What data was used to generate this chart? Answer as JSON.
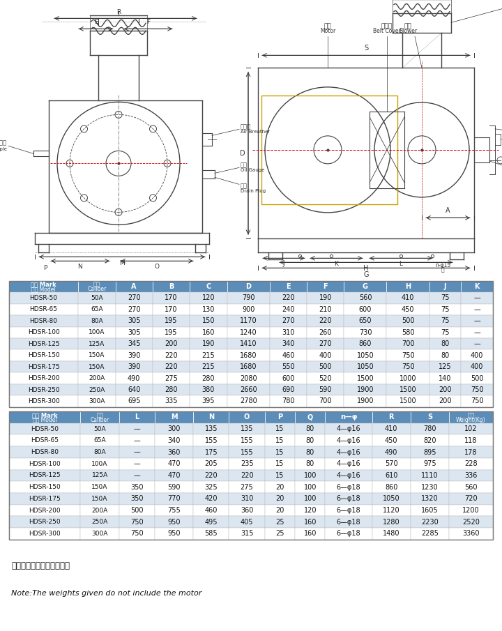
{
  "table1_header": [
    "记号 Mark\n型式 Model",
    "口径\nCaliber",
    "A",
    "B",
    "C",
    "D",
    "E",
    "F",
    "G",
    "H",
    "J",
    "K"
  ],
  "table1_data": [
    [
      "HDSR-50",
      "50A",
      "270",
      "170",
      "120",
      "790",
      "220",
      "190",
      "560",
      "410",
      "75",
      "—"
    ],
    [
      "HDSR-65",
      "65A",
      "270",
      "170",
      "130",
      "900",
      "240",
      "210",
      "600",
      "450",
      "75",
      "—"
    ],
    [
      "HDSR-80",
      "80A",
      "305",
      "195",
      "150",
      "1170",
      "270",
      "220",
      "650",
      "500",
      "75",
      "—"
    ],
    [
      "HDSR-100",
      "100A",
      "305",
      "195",
      "160",
      "1240",
      "310",
      "260",
      "730",
      "580",
      "75",
      "—"
    ],
    [
      "HDSR-125",
      "125A",
      "345",
      "200",
      "190",
      "1410",
      "340",
      "270",
      "860",
      "700",
      "80",
      "—"
    ],
    [
      "HDSR-150",
      "150A",
      "390",
      "220",
      "215",
      "1680",
      "460",
      "400",
      "1050",
      "750",
      "80",
      "400"
    ],
    [
      "HDSR-175",
      "150A",
      "390",
      "220",
      "215",
      "1680",
      "550",
      "500",
      "1050",
      "750",
      "125",
      "400"
    ],
    [
      "HDSR-200",
      "200A",
      "490",
      "275",
      "280",
      "2080",
      "600",
      "520",
      "1500",
      "1000",
      "140",
      "500"
    ],
    [
      "HDSR-250",
      "250A",
      "640",
      "280",
      "380",
      "2660",
      "690",
      "590",
      "1900",
      "1500",
      "200",
      "750"
    ],
    [
      "HDSR-300",
      "300A",
      "695",
      "335",
      "395",
      "2780",
      "780",
      "700",
      "1900",
      "1500",
      "200",
      "750"
    ]
  ],
  "table2_header": [
    "记号 Mark\n型式 Model",
    "口径\nCaliber",
    "L",
    "M",
    "N",
    "O",
    "P",
    "Q",
    "n—φ",
    "R",
    "S",
    "重量\nWeight(Kg)"
  ],
  "table2_data": [
    [
      "HDSR-50",
      "50A",
      "—",
      "300",
      "135",
      "135",
      "15",
      "80",
      "4—φ16",
      "410",
      "780",
      "102"
    ],
    [
      "HDSR-65",
      "65A",
      "—",
      "340",
      "155",
      "155",
      "15",
      "80",
      "4—φ16",
      "450",
      "820",
      "118"
    ],
    [
      "HDSR-80",
      "80A",
      "—",
      "360",
      "175",
      "155",
      "15",
      "80",
      "4—φ16",
      "490",
      "895",
      "178"
    ],
    [
      "HDSR-100",
      "100A",
      "—",
      "470",
      "205",
      "235",
      "15",
      "80",
      "4—φ16",
      "570",
      "975",
      "228"
    ],
    [
      "HDSR-125",
      "125A",
      "—",
      "470",
      "220",
      "220",
      "15",
      "100",
      "4—φ16",
      "610",
      "1110",
      "336"
    ],
    [
      "HDSR-150",
      "150A",
      "350",
      "590",
      "325",
      "275",
      "20",
      "100",
      "6—φ18",
      "860",
      "1230",
      "560"
    ],
    [
      "HDSR-175",
      "150A",
      "350",
      "770",
      "420",
      "310",
      "20",
      "100",
      "6—φ18",
      "1050",
      "1320",
      "720"
    ],
    [
      "HDSR-200",
      "200A",
      "500",
      "755",
      "460",
      "360",
      "20",
      "120",
      "6—φ18",
      "1120",
      "1605",
      "1200"
    ],
    [
      "HDSR-250",
      "250A",
      "750",
      "950",
      "495",
      "405",
      "25",
      "160",
      "6—φ18",
      "1280",
      "2230",
      "2520"
    ],
    [
      "HDSR-300",
      "300A",
      "750",
      "950",
      "585",
      "315",
      "25",
      "160",
      "6—φ18",
      "1480",
      "2285",
      "3360"
    ]
  ],
  "note_cn": "注：重量中不包括电机重量",
  "note_en": "Note:The weights given do not include the motor",
  "header_bg": "#5b8db8",
  "alt_row_bg": "#dce6f0",
  "white_row_bg": "#ffffff",
  "header_text_color": "#ffffff",
  "text_color": "#111111",
  "draw_line_color": "#444444",
  "dim_line_color": "#333333",
  "red_dash_color": "#cc0000"
}
